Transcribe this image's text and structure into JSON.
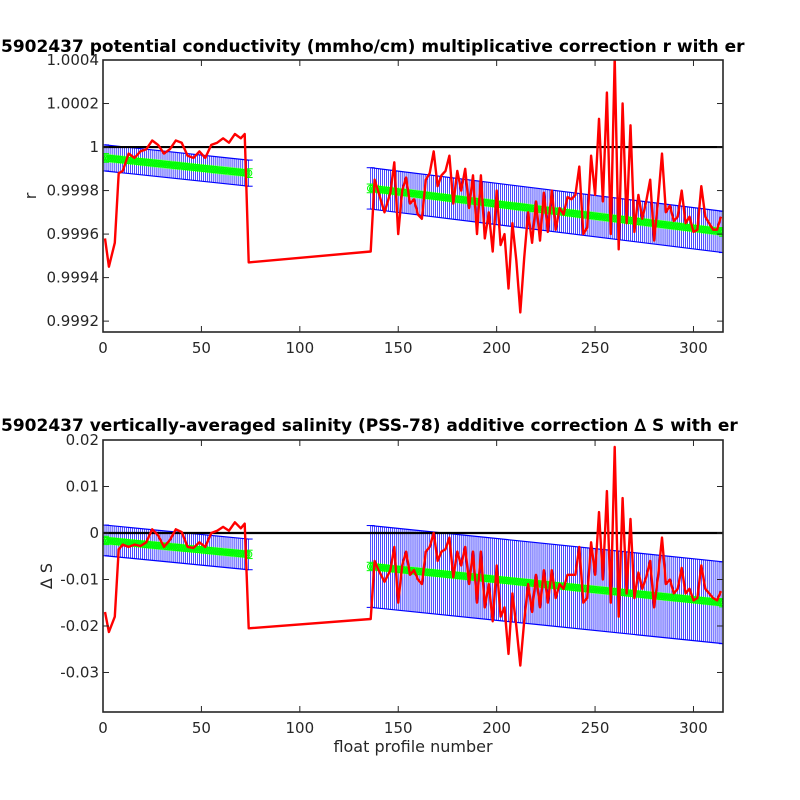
{
  "chart_data": [
    {
      "type": "line",
      "title": "5902437 potential conductivity (mmho/cm) multiplicative correction r with er",
      "xlabel": "",
      "ylabel": "r",
      "xlim": [
        0,
        315
      ],
      "ylim": [
        0.99915,
        1.0004
      ],
      "xticks": [
        0,
        50,
        100,
        150,
        200,
        250,
        300
      ],
      "xticklabels": [
        "0",
        "50",
        "100",
        "150",
        "200",
        "250",
        "300"
      ],
      "yticks": [
        0.9992,
        0.9994,
        0.9996,
        0.9998,
        1.0,
        1.0002,
        1.0004
      ],
      "yticklabels": [
        "0.9992",
        "0.9994",
        "0.9996",
        "0.9998",
        "1",
        "1.0002",
        "1.0004"
      ],
      "reference_line": 1.0,
      "fit_segments": [
        {
          "x": [
            1,
            74
          ],
          "fit": [
            0.99995,
            0.99988
          ],
          "inner_err": 2e-05,
          "outer_err": 6e-05
        },
        {
          "x": [
            136,
            315
          ],
          "fit": [
            0.99981,
            0.99961
          ],
          "inner_err": 2e-05,
          "outer_err": 9.5e-05
        }
      ],
      "series": [
        {
          "color": "#ff0000",
          "x": [
            1,
            3,
            6,
            8,
            10,
            13,
            16,
            19,
            22,
            25,
            28,
            31,
            34,
            37,
            40,
            43,
            46,
            49,
            52,
            55,
            58,
            61,
            64,
            67,
            70,
            72,
            74,
            136,
            138,
            140,
            143,
            146,
            148,
            150,
            152,
            154,
            156,
            158,
            160,
            162,
            164,
            166,
            168,
            170,
            172,
            174,
            176,
            178,
            180,
            182,
            184,
            186,
            188,
            190,
            192,
            194,
            196,
            198,
            200,
            202,
            204,
            206,
            208,
            210,
            212,
            214,
            216,
            218,
            220,
            222,
            224,
            226,
            228,
            230,
            232,
            234,
            236,
            238,
            240,
            242,
            244,
            246,
            248,
            250,
            252,
            254,
            256,
            258,
            260,
            262,
            264,
            266,
            268,
            270,
            272,
            274,
            276,
            278,
            280,
            282,
            284,
            286,
            288,
            290,
            292,
            294,
            296,
            298,
            300,
            302,
            304,
            306,
            308,
            310,
            312,
            314
          ],
          "values": [
            0.99958,
            0.99945,
            0.99956,
            0.99988,
            0.99989,
            0.99997,
            0.99995,
            0.99998,
            0.99999,
            1.00003,
            1.00001,
            0.99997,
            0.99999,
            1.00003,
            1.00002,
            0.99996,
            0.99995,
            0.99998,
            0.99995,
            1.00001,
            1.00002,
            1.00004,
            1.00002,
            1.00006,
            1.00004,
            1.00006,
            0.99947,
            0.99952,
            0.99985,
            0.99979,
            0.9997,
            0.99979,
            0.99993,
            0.9996,
            0.9998,
            0.99986,
            0.99974,
            0.99976,
            0.99969,
            0.99967,
            0.99985,
            0.99988,
            0.99998,
            0.99982,
            0.99987,
            0.99989,
            0.99996,
            0.99974,
            0.99989,
            0.9998,
            0.9999,
            0.99972,
            0.99987,
            0.9996,
            0.99987,
            0.99958,
            0.9997,
            0.99952,
            0.9998,
            0.99955,
            0.9996,
            0.99935,
            0.99965,
            0.99948,
            0.99924,
            0.99949,
            0.9997,
            0.99956,
            0.99975,
            0.99957,
            0.99979,
            0.99961,
            0.9998,
            0.99962,
            0.99972,
            0.99969,
            0.99977,
            0.99976,
            0.99978,
            0.99991,
            0.9996,
            0.99963,
            0.99996,
            0.99978,
            1.00013,
            0.99975,
            1.00025,
            0.9996,
            1.00041,
            0.99953,
            1.0002,
            0.99965,
            1.0001,
            0.99961,
            0.99978,
            0.99967,
            0.99975,
            0.99985,
            0.99957,
            0.99975,
            0.99997,
            0.9997,
            0.99973,
            0.99966,
            0.99968,
            0.9998,
            0.99965,
            0.99968,
            0.99961,
            0.99962,
            0.99982,
            0.99968,
            0.99965,
            0.99962,
            0.99962,
            0.99968
          ]
        }
      ]
    },
    {
      "type": "line",
      "title": "5902437 vertically-averaged salinity (PSS-78) additive correction ∆ S with er",
      "xlabel": "float profile number",
      "ylabel": "∆ S",
      "xlim": [
        0,
        315
      ],
      "ylim": [
        -0.0385,
        0.02
      ],
      "xticks": [
        0,
        50,
        100,
        150,
        200,
        250,
        300
      ],
      "xticklabels": [
        "0",
        "50",
        "100",
        "150",
        "200",
        "250",
        "300"
      ],
      "yticks": [
        -0.03,
        -0.02,
        -0.01,
        0,
        0.01,
        0.02
      ],
      "yticklabels": [
        "-0.03",
        "-0.02",
        "-0.01",
        "0",
        "0.01",
        "0.02"
      ],
      "reference_line": 0,
      "fit_segments": [
        {
          "x": [
            1,
            74
          ],
          "fit": [
            -0.0016,
            -0.0046
          ],
          "inner_err": 0.0009,
          "outer_err": 0.0033
        },
        {
          "x": [
            136,
            315
          ],
          "fit": [
            -0.0072,
            -0.015
          ],
          "inner_err": 0.0009,
          "outer_err": 0.0088
        }
      ],
      "series": [
        {
          "color": "#ff0000",
          "x": [
            1,
            3,
            6,
            8,
            10,
            13,
            16,
            19,
            22,
            25,
            28,
            31,
            34,
            37,
            40,
            43,
            46,
            49,
            52,
            55,
            58,
            61,
            64,
            67,
            70,
            72,
            74,
            136,
            138,
            140,
            143,
            146,
            148,
            150,
            152,
            154,
            156,
            158,
            160,
            162,
            164,
            166,
            168,
            170,
            172,
            174,
            176,
            178,
            180,
            182,
            184,
            186,
            188,
            190,
            192,
            194,
            196,
            198,
            200,
            202,
            204,
            206,
            208,
            210,
            212,
            214,
            216,
            218,
            220,
            222,
            224,
            226,
            228,
            230,
            232,
            234,
            236,
            238,
            240,
            242,
            244,
            246,
            248,
            250,
            252,
            254,
            256,
            258,
            260,
            262,
            264,
            266,
            268,
            270,
            272,
            274,
            276,
            278,
            280,
            282,
            284,
            286,
            288,
            290,
            292,
            294,
            296,
            298,
            300,
            302,
            304,
            306,
            308,
            310,
            312,
            314
          ],
          "values": [
            -0.017,
            -0.0213,
            -0.018,
            -0.0035,
            -0.0025,
            -0.003,
            -0.0025,
            -0.0028,
            -0.002,
            0.0008,
            -0.0005,
            -0.003,
            -0.0015,
            0.0008,
            0.0002,
            -0.003,
            -0.0032,
            -0.002,
            -0.003,
            0.0,
            0.0005,
            0.0013,
            0.0005,
            0.0023,
            0.001,
            0.002,
            -0.0205,
            -0.0185,
            -0.006,
            -0.008,
            -0.0105,
            -0.008,
            -0.003,
            -0.015,
            -0.007,
            -0.004,
            -0.009,
            -0.008,
            -0.01,
            -0.011,
            -0.004,
            -0.003,
            0.0,
            -0.006,
            -0.004,
            -0.0035,
            -0.001,
            -0.0095,
            -0.004,
            -0.007,
            -0.003,
            -0.011,
            -0.004,
            -0.015,
            -0.004,
            -0.016,
            -0.011,
            -0.019,
            -0.007,
            -0.018,
            -0.016,
            -0.026,
            -0.013,
            -0.02,
            -0.0285,
            -0.019,
            -0.011,
            -0.017,
            -0.009,
            -0.016,
            -0.008,
            -0.015,
            -0.008,
            -0.014,
            -0.011,
            -0.012,
            -0.009,
            -0.009,
            -0.009,
            -0.003,
            -0.015,
            -0.014,
            -0.002,
            -0.009,
            0.0045,
            -0.01,
            0.009,
            -0.015,
            0.0185,
            -0.018,
            0.0075,
            -0.013,
            0.003,
            -0.014,
            -0.0085,
            -0.012,
            -0.0095,
            -0.006,
            -0.016,
            -0.0095,
            -0.001,
            -0.011,
            -0.01,
            -0.013,
            -0.012,
            -0.0075,
            -0.013,
            -0.012,
            -0.0145,
            -0.014,
            -0.007,
            -0.012,
            -0.013,
            -0.014,
            -0.0145,
            -0.0125
          ]
        }
      ]
    }
  ]
}
